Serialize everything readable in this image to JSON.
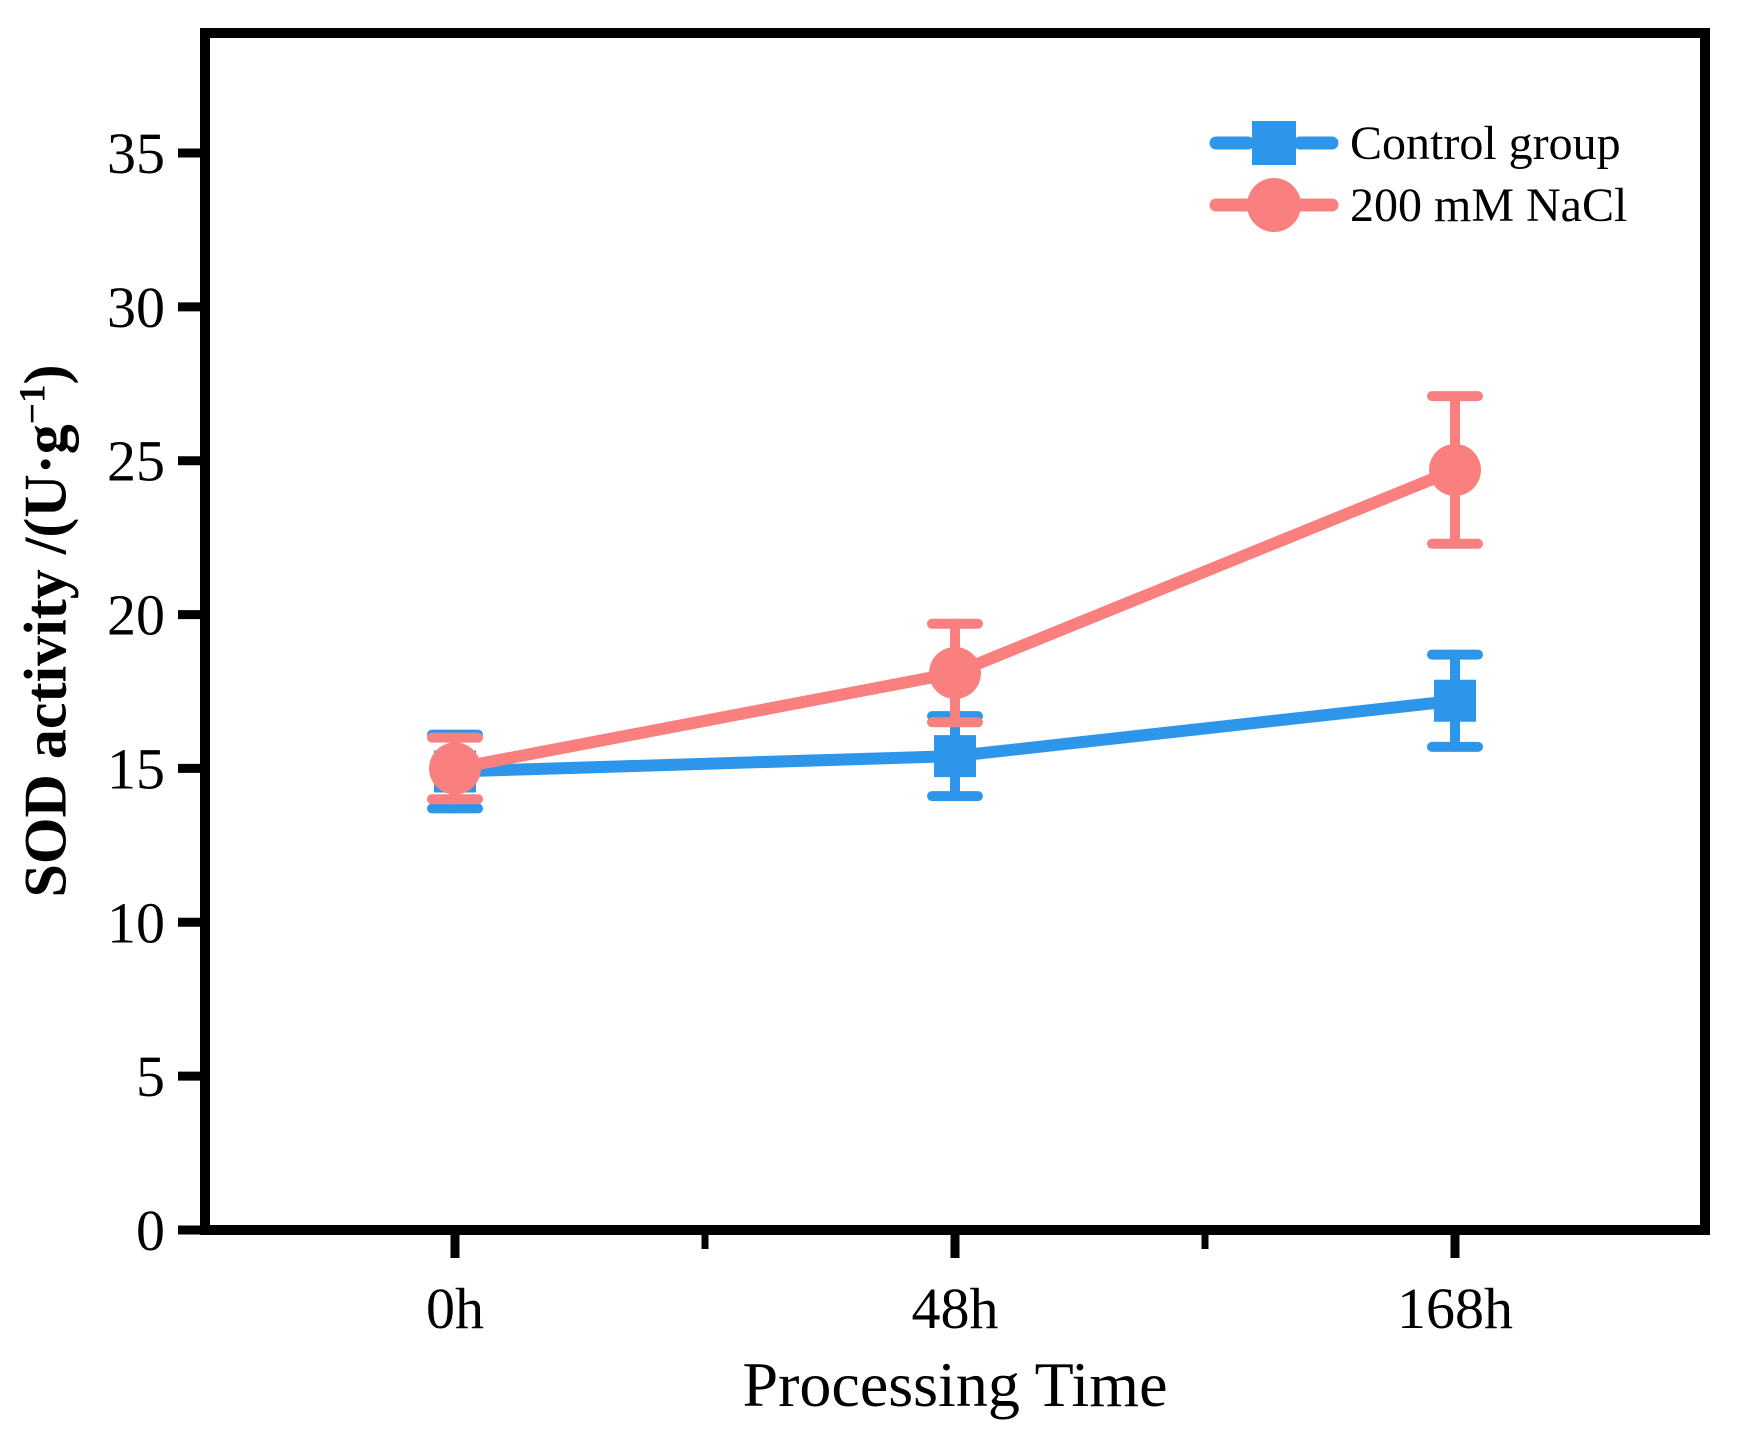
{
  "chart_data": {
    "type": "line",
    "title": "",
    "xlabel": "Processing Time",
    "ylabel": "SOD activity /(U·g−1)",
    "ylabel_parts": {
      "prefix": "SOD activity /(U·g",
      "sup": "−1",
      "close": ")"
    },
    "categories": [
      "0h",
      "48h",
      "168h"
    ],
    "yticks": [
      0,
      5,
      10,
      15,
      20,
      25,
      30,
      35
    ],
    "ylim": [
      0,
      38.9
    ],
    "grid": false,
    "legend_position": "top-right",
    "series": [
      {
        "name": "Control group",
        "marker": "square",
        "color": "#2E96EA",
        "values": [
          14.9,
          15.4,
          17.2
        ],
        "errors": [
          1.2,
          1.3,
          1.5
        ]
      },
      {
        "name": "200 mM NaCl",
        "marker": "circle",
        "color": "#FA8080",
        "values": [
          15.0,
          18.1,
          24.7
        ],
        "errors": [
          1.0,
          1.6,
          2.4
        ]
      }
    ]
  }
}
